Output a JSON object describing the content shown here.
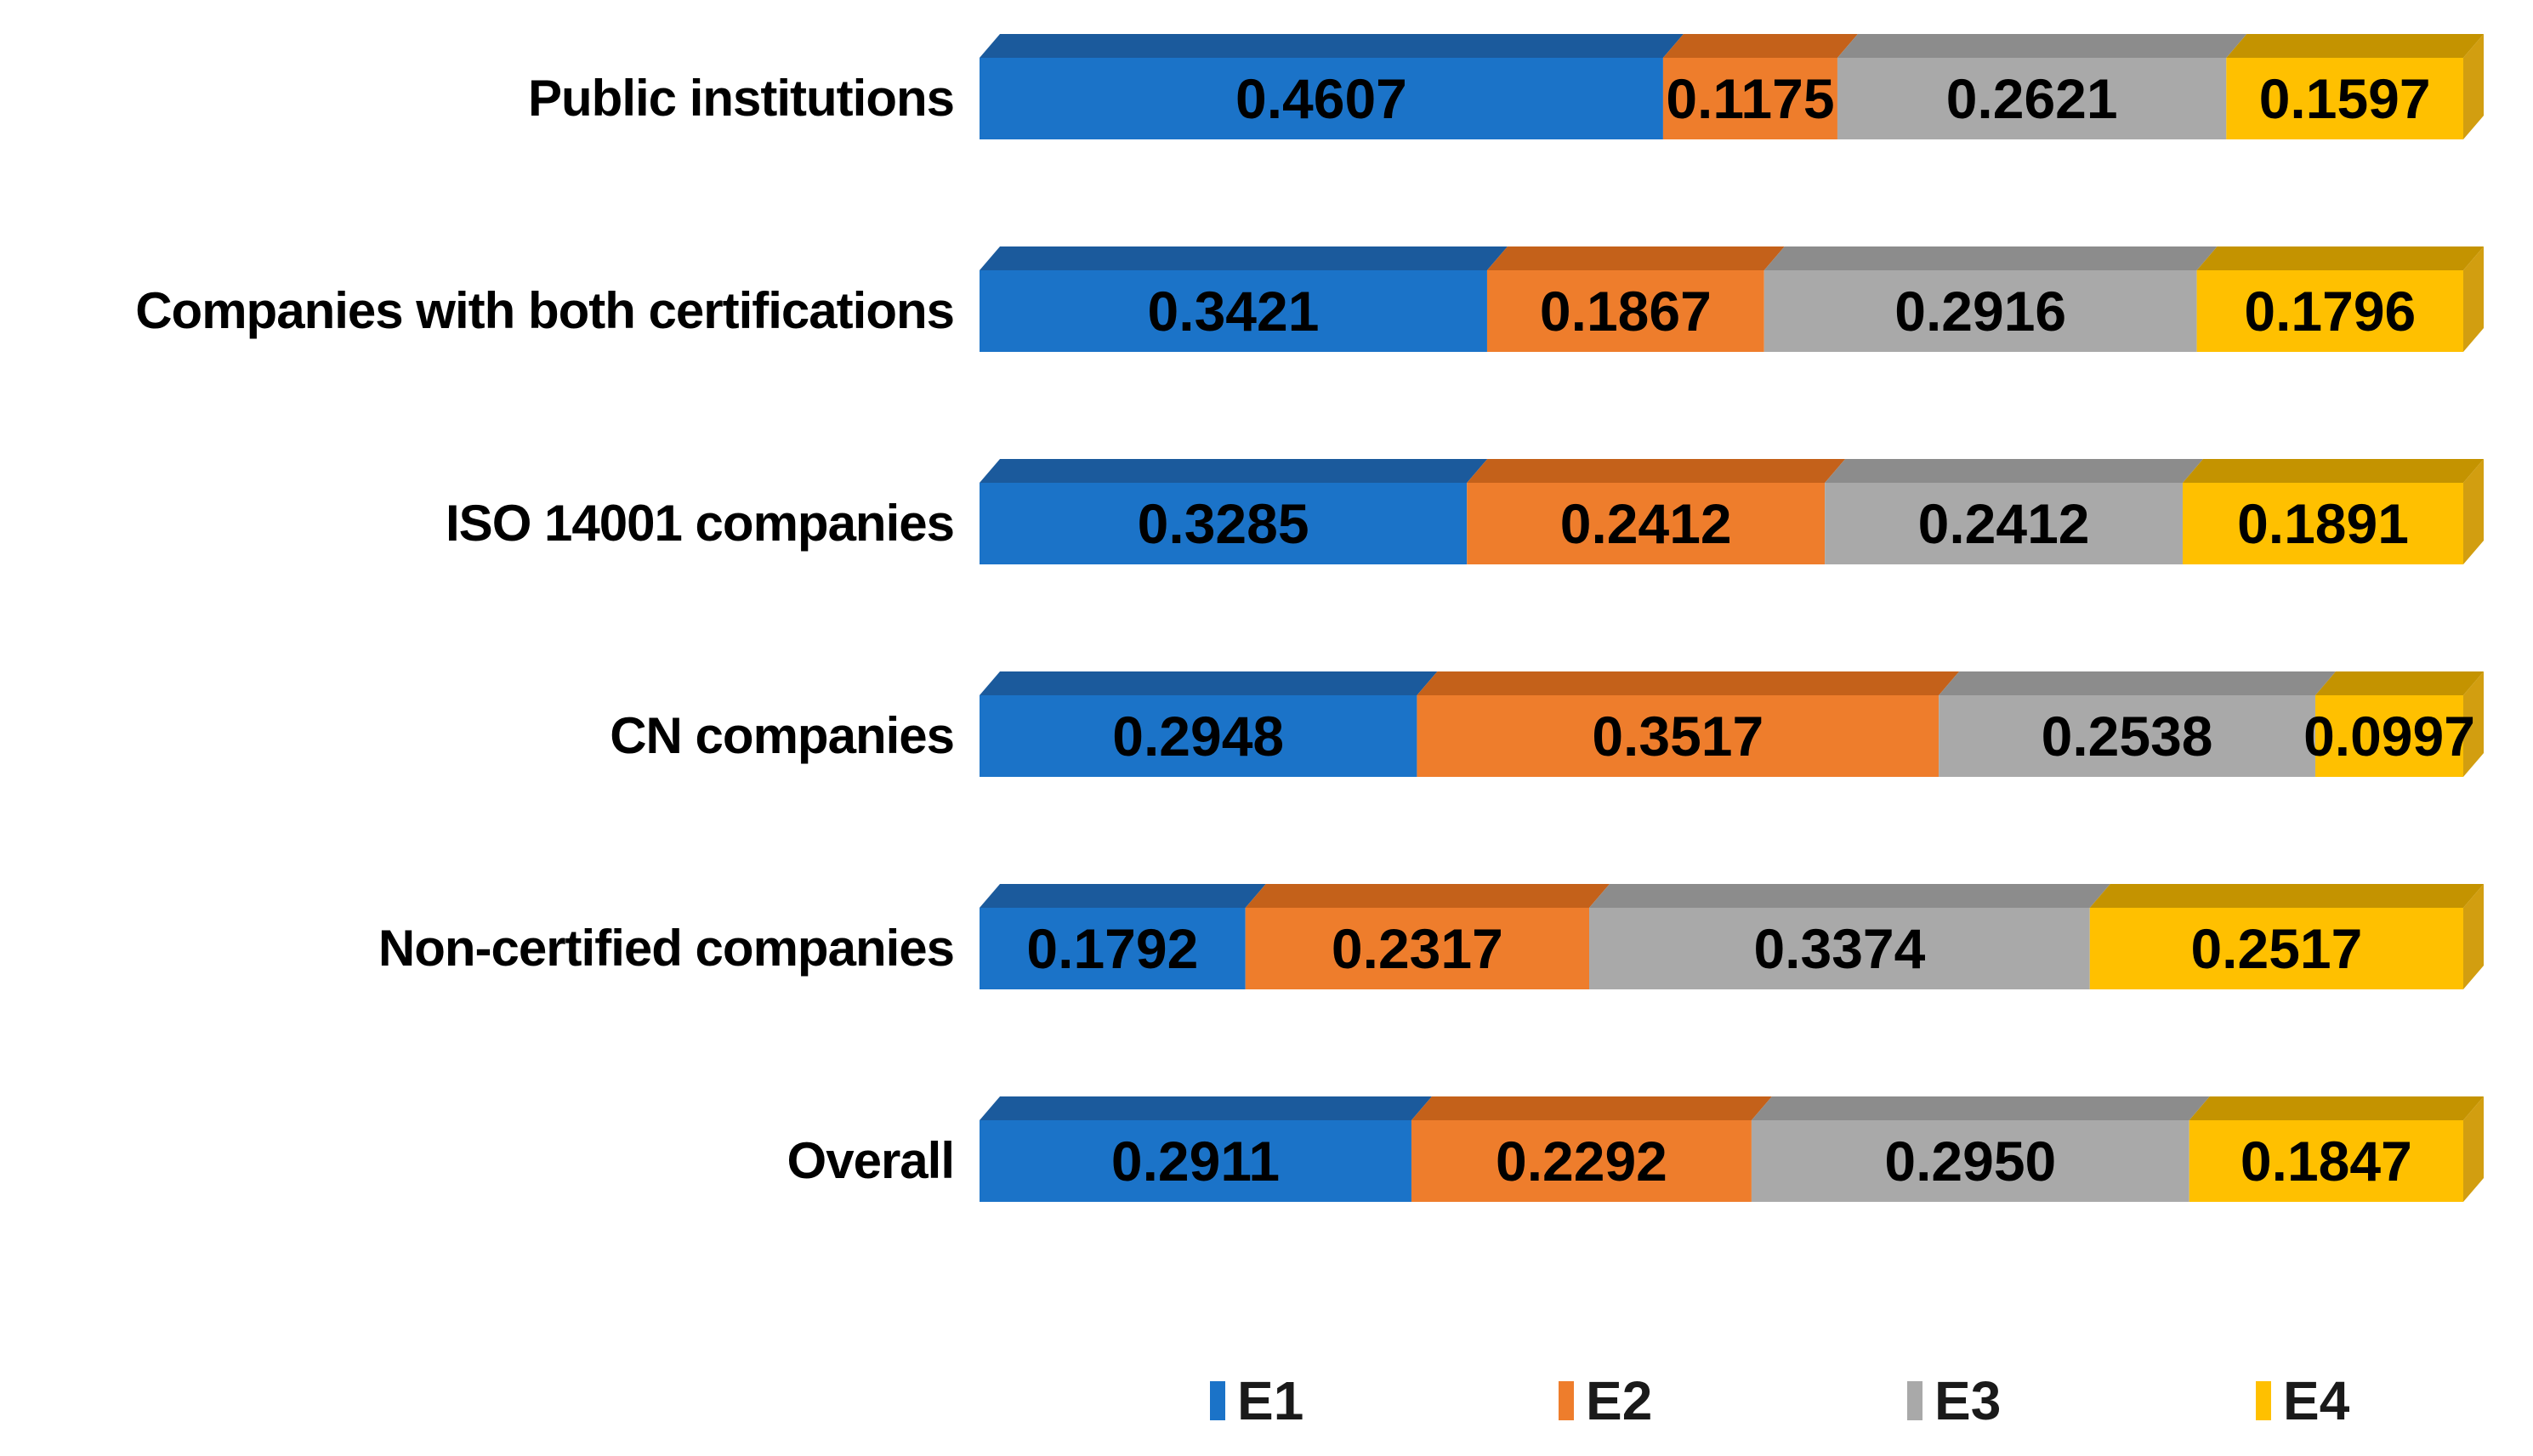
{
  "chart_data": {
    "type": "bar",
    "variant": "horizontal-stacked-3d",
    "title": "",
    "xlabel": "",
    "ylabel": "",
    "xlim": [
      0,
      1
    ],
    "grid": false,
    "legend_position": "bottom",
    "background_color": "#ffffff",
    "value_label_color": "#000000",
    "category_label_color": "#000000",
    "categories": [
      "Public institutions",
      "Companies with both certifications",
      "ISO 14001 companies",
      "CN companies",
      "Non-certified companies",
      "Overall"
    ],
    "series": [
      {
        "name": "E1",
        "color": "#1B73C8",
        "color_top": "#1B5A9C",
        "color_side": "#155089",
        "values": [
          0.4607,
          0.3421,
          0.3285,
          0.2948,
          0.1792,
          0.2911
        ],
        "labels": [
          "0.4607",
          "0.3421",
          "0.3285",
          "0.2948",
          "0.1792",
          "0.2911"
        ]
      },
      {
        "name": "E2",
        "color": "#EE7D2C",
        "color_top": "#C4611A",
        "color_side": "#B85A17",
        "values": [
          0.1175,
          0.1867,
          0.2412,
          0.3517,
          0.2317,
          0.2292
        ],
        "labels": [
          "0.1175",
          "0.1867",
          "0.2412",
          "0.3517",
          "0.2317",
          "0.2292"
        ]
      },
      {
        "name": "E3",
        "color": "#A9A9A9",
        "color_top": "#8C8C8C",
        "color_side": "#838383",
        "values": [
          0.2621,
          0.2916,
          0.2412,
          0.2538,
          0.3374,
          0.295
        ],
        "labels": [
          "0.2621",
          "0.2916",
          "0.2412",
          "0.2538",
          "0.3374",
          "0.2950"
        ]
      },
      {
        "name": "E4",
        "color": "#FFC000",
        "color_top": "#C49300",
        "color_side": "#D29E10",
        "values": [
          0.1597,
          0.1796,
          0.1891,
          0.0997,
          0.2517,
          0.1847
        ],
        "labels": [
          "0.1597",
          "0.1796",
          "0.1891",
          "0.0997",
          "0.2517",
          "0.1847"
        ]
      }
    ]
  }
}
